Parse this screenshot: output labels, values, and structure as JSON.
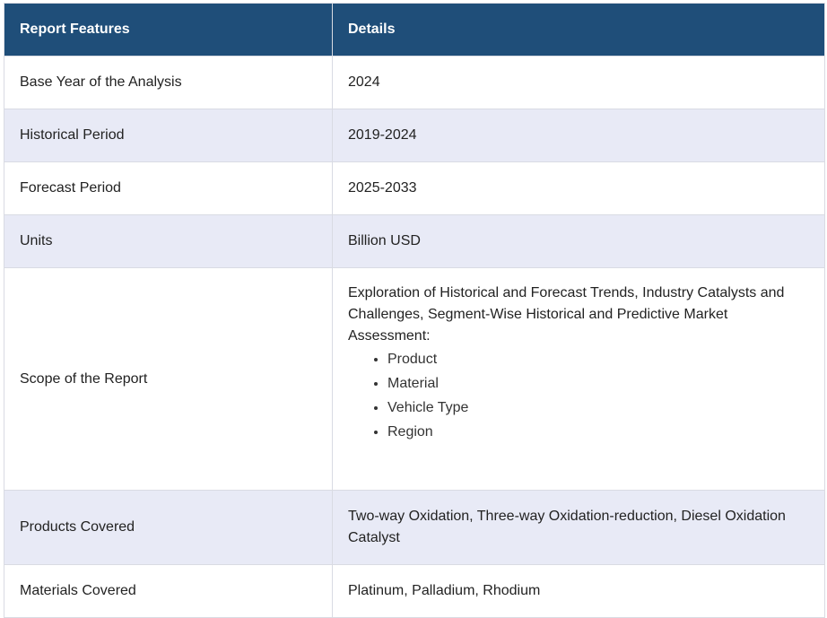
{
  "table": {
    "headers": {
      "feature": "Report Features",
      "details": "Details"
    },
    "rows": [
      {
        "feature": "Base Year of the Analysis",
        "details": "2024"
      },
      {
        "feature": "Historical Period",
        "details": "2019-2024"
      },
      {
        "feature": "Forecast Period",
        "details": "2025-2033"
      },
      {
        "feature": "Units",
        "details": "Billion USD"
      },
      {
        "feature": "Scope of the Report",
        "details": "Exploration of Historical and Forecast Trends, Industry Catalysts and Challenges, Segment-Wise Historical and Predictive Market Assessment:",
        "items": [
          "Product",
          "Material",
          "Vehicle Type",
          "Region"
        ]
      },
      {
        "feature": "Products Covered",
        "details": "Two-way Oxidation, Three-way Oxidation-reduction, Diesel Oxidation Catalyst"
      },
      {
        "feature": "Materials Covered",
        "details": "Platinum, Palladium, Rhodium"
      }
    ]
  },
  "colors": {
    "header_bg": "#1f4e79",
    "header_text": "#ffffff",
    "row_alt_bg": "#e8eaf6",
    "border": "#d9dbe3"
  }
}
